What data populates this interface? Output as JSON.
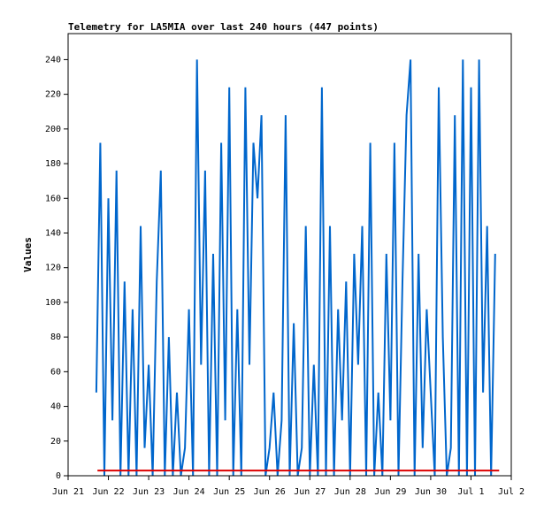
{
  "chart_data": {
    "type": "line",
    "title": "Telemetry for LA5MIA over last 240 hours (447 points)",
    "ylabel": "Values",
    "x": [
      0.7,
      0.8,
      0.9,
      1.0,
      1.1,
      1.2,
      1.3,
      1.4,
      1.5,
      1.6,
      1.7,
      1.8,
      1.9,
      2.0,
      2.1,
      2.2,
      2.3,
      2.4,
      2.5,
      2.6,
      2.7,
      2.8,
      2.9,
      3.0,
      3.1,
      3.2,
      3.3,
      3.4,
      3.5,
      3.6,
      3.7,
      3.8,
      3.9,
      4.0,
      4.1,
      4.2,
      4.3,
      4.4,
      4.5,
      4.6,
      4.7,
      4.8,
      4.9,
      5.0,
      5.1,
      5.2,
      5.3,
      5.4,
      5.5,
      5.6,
      5.7,
      5.8,
      5.9,
      6.0,
      6.1,
      6.2,
      6.3,
      6.4,
      6.5,
      6.6,
      6.7,
      6.8,
      6.9,
      7.0,
      7.1,
      7.2,
      7.3,
      7.4,
      7.5,
      7.6,
      7.7,
      7.8,
      7.9,
      8.0,
      8.1,
      8.2,
      8.3,
      8.4,
      8.5,
      8.6,
      8.7,
      8.8,
      8.9,
      9.0,
      9.1,
      9.2,
      9.3,
      9.4,
      9.5,
      9.6,
      9.7,
      9.8,
      9.9,
      10.0,
      10.1,
      10.2,
      10.3,
      10.4,
      10.5,
      10.6
    ],
    "series": [
      {
        "color": "#0066cc",
        "values": [
          48,
          192,
          0,
          160,
          32,
          176,
          0,
          112,
          0,
          96,
          0,
          144,
          16,
          64,
          0,
          112,
          176,
          0,
          80,
          0,
          48,
          0,
          16,
          96,
          0,
          240,
          64,
          176,
          0,
          128,
          0,
          192,
          32,
          224,
          0,
          96,
          0,
          224,
          64,
          192,
          160,
          208,
          0,
          16,
          48,
          0,
          32,
          208,
          0,
          88,
          0,
          16,
          144,
          0,
          64,
          0,
          224,
          0,
          144,
          0,
          96,
          32,
          112,
          0,
          128,
          64,
          144,
          0,
          192,
          0,
          48,
          0,
          128,
          32,
          192,
          0,
          112,
          208,
          240,
          0,
          128,
          16,
          96,
          48,
          0,
          224,
          80,
          0,
          16,
          208,
          0,
          240,
          0,
          224,
          0,
          240,
          48,
          144,
          0,
          128
        ]
      },
      {
        "color": "#dd0000",
        "x": [
          0.73,
          10.7
        ],
        "values": [
          3,
          3
        ]
      }
    ],
    "xlim": [
      0,
      11
    ],
    "xticks": [
      {
        "value": 0,
        "label": "Jun 21"
      },
      {
        "value": 1,
        "label": "Jun 22"
      },
      {
        "value": 2,
        "label": "Jun 23"
      },
      {
        "value": 3,
        "label": "Jun 24"
      },
      {
        "value": 4,
        "label": "Jun 25"
      },
      {
        "value": 5,
        "label": "Jun 26"
      },
      {
        "value": 6,
        "label": "Jun 27"
      },
      {
        "value": 7,
        "label": "Jun 28"
      },
      {
        "value": 8,
        "label": "Jun 29"
      },
      {
        "value": 9,
        "label": "Jun 30"
      },
      {
        "value": 10,
        "label": "Jul 1"
      },
      {
        "value": 11,
        "label": "Jul 2"
      }
    ],
    "ylim": [
      0,
      255
    ],
    "yticks": [
      0,
      20,
      40,
      60,
      80,
      100,
      120,
      140,
      160,
      180,
      200,
      220,
      240
    ]
  }
}
